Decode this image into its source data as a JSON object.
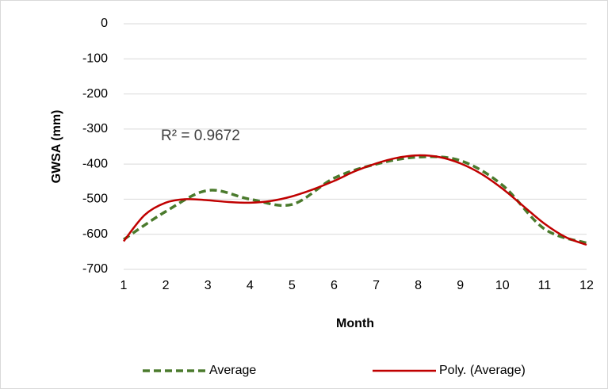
{
  "chart_data": {
    "type": "line",
    "x_label": "Month",
    "y_label": "GWSA (mm)",
    "annotation": "R² = 0.9672",
    "xlim": [
      1,
      12
    ],
    "xticks": [
      1,
      2,
      3,
      4,
      5,
      6,
      7,
      8,
      9,
      10,
      11,
      12
    ],
    "ylim": [
      -700,
      0
    ],
    "yticks": [
      0,
      -100,
      -200,
      -300,
      -400,
      -500,
      -600,
      -700
    ],
    "grid": true,
    "legend": "bottom",
    "series": [
      {
        "name": "Average",
        "color": "#4a7a2c",
        "dashed": true,
        "x": [
          1,
          2,
          3,
          4,
          5,
          6,
          7,
          8,
          9,
          10,
          11,
          12
        ],
        "values": [
          -615,
          -535,
          -475,
          -500,
          -515,
          -440,
          -400,
          -380,
          -390,
          -460,
          -585,
          -625
        ]
      },
      {
        "name": "Poly. (Average)",
        "color": "#c00000",
        "dashed": false,
        "x": [
          1,
          1.5,
          2,
          2.5,
          3,
          3.5,
          4,
          4.5,
          5,
          5.5,
          6,
          6.5,
          7,
          7.5,
          8,
          8.5,
          9,
          9.5,
          10,
          10.5,
          11,
          11.5,
          12
        ],
        "values": [
          -620,
          -545,
          -510,
          -500,
          -503,
          -508,
          -510,
          -505,
          -492,
          -472,
          -448,
          -420,
          -398,
          -382,
          -375,
          -380,
          -398,
          -428,
          -470,
          -520,
          -570,
          -608,
          -630
        ]
      }
    ]
  }
}
